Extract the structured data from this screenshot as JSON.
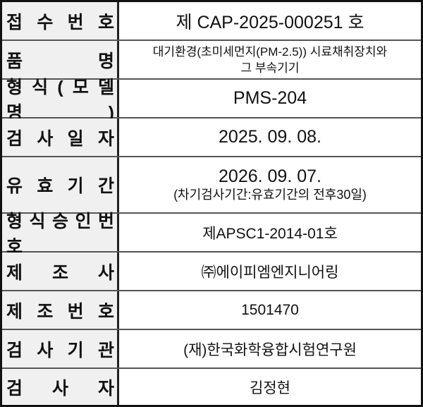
{
  "rows": [
    {
      "label": "접 수 번 호",
      "value": "제 CAP-2025-000251 호"
    },
    {
      "label": "품 명",
      "value_lines": [
        "대기환경(초미세먼지(PM-2.5)) 시료채취장치와",
        "그 부속기기"
      ]
    },
    {
      "label": "형 식 ( 모 델 명 )",
      "value": "PMS-204"
    },
    {
      "label": "검 사 일 자",
      "value": "2025. 09. 08."
    },
    {
      "label": "유 효 기 간",
      "value": "2026. 09. 07.",
      "note": "(차기검사기간:유효기간의 전후30일)"
    },
    {
      "label": "형 식 승 인 번 호",
      "value": "제APSC1-2014-01호"
    },
    {
      "label": "제 조 사",
      "value": "㈜에이피엠엔지니어링"
    },
    {
      "label": "제 조 번 호",
      "value": "1501470"
    },
    {
      "label": "검 사 기 관",
      "value": "(재)한국화학융합시험연구원"
    },
    {
      "label": "검 사 자",
      "value": "김정현"
    }
  ]
}
